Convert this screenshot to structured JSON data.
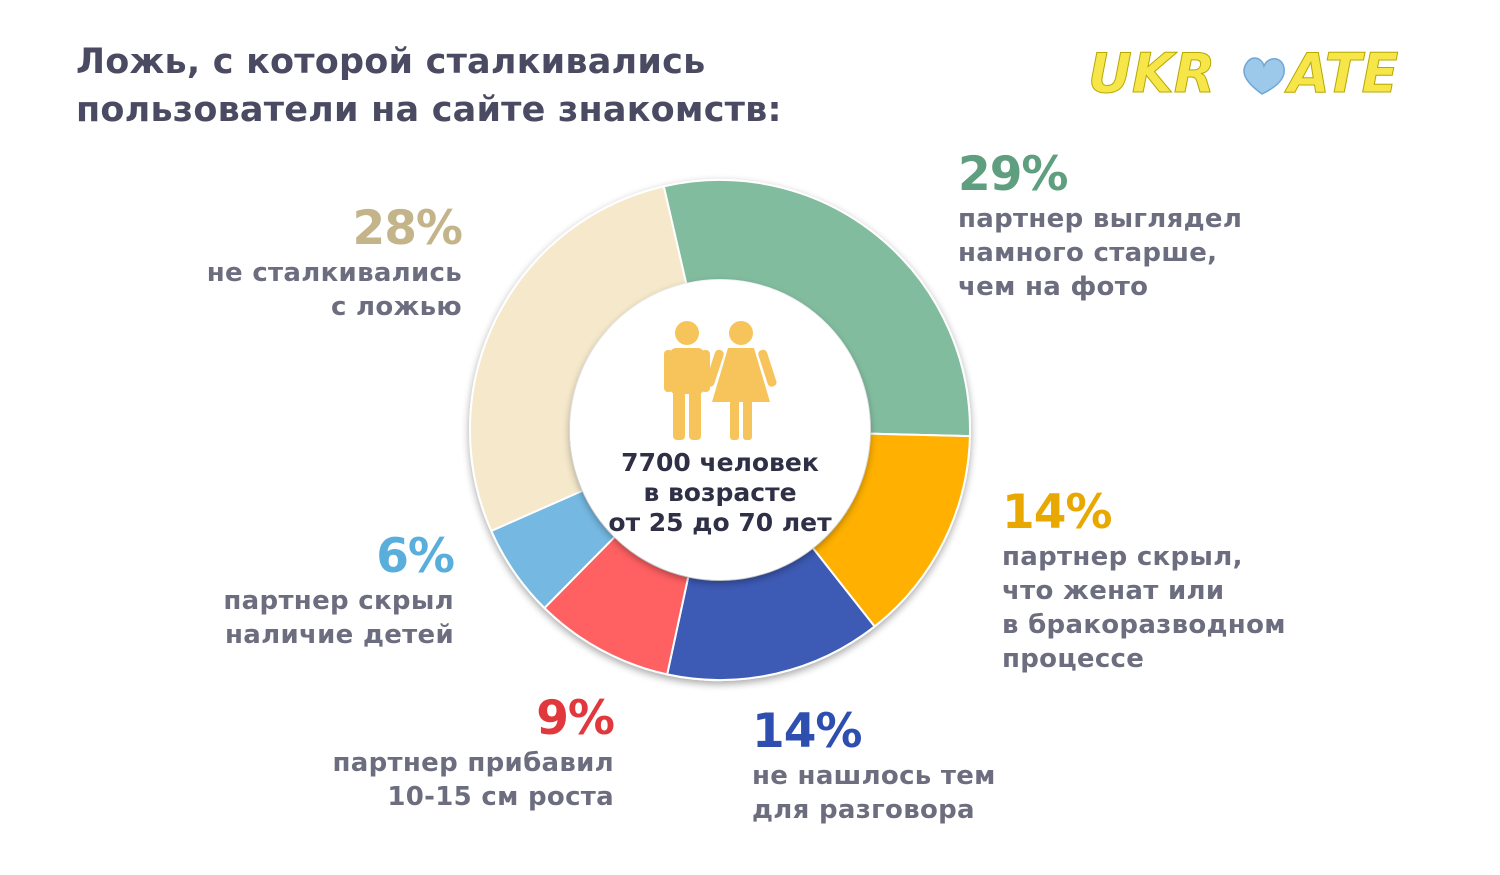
{
  "title": {
    "line1": "Ложь, с которой сталкивались",
    "line2": "пользователи на сайте знакомств:"
  },
  "logo": {
    "text_left": "UKR",
    "text_right": "ATE",
    "icon": "heart-icon",
    "color": "#f7e64a"
  },
  "center": {
    "icon": "people-couple-icon",
    "line1": "7700 человек",
    "line2": "в возрасте",
    "line3": "от 25 до 70 лет"
  },
  "chart_data": {
    "type": "donut",
    "categories": [
      "партнер выглядел намного старше, чем на фото",
      "партнер скрыл, что женат или в бракоразводном процессе",
      "не нашлось тем для разговора",
      "партнер прибавил 10-15 см роста",
      "партнер скрыл наличие детей",
      "не сталкивались с ложью"
    ],
    "values": [
      29,
      14,
      14,
      9,
      6,
      28
    ],
    "colors": [
      "#82bc9f",
      "#ffb000",
      "#3d5ab5",
      "#ff6062",
      "#74b8e2",
      "#f5e8cb"
    ],
    "labels": [
      {
        "pct": "29%",
        "lines": [
          "партнер выглядел",
          "намного старше,",
          "чем на фото"
        ],
        "color": "#5f9e7f"
      },
      {
        "pct": "14%",
        "lines": [
          "партнер скрыл,",
          "что женат или",
          "в бракоразводном",
          "процессе"
        ],
        "color": "#e8a800"
      },
      {
        "pct": "14%",
        "lines": [
          "не нашлось тем",
          "для разговора"
        ],
        "color": "#2f4fb0"
      },
      {
        "pct": "9%",
        "lines": [
          "партнер прибавил",
          "10-15 см роста"
        ],
        "color": "#e0383c"
      },
      {
        "pct": "6%",
        "lines": [
          "партнер скрыл",
          "наличие детей"
        ],
        "color": "#5aaedb"
      },
      {
        "pct": "28%",
        "lines": [
          "не сталкивались",
          "с ложью"
        ],
        "color": "#c4b48a"
      }
    ]
  }
}
